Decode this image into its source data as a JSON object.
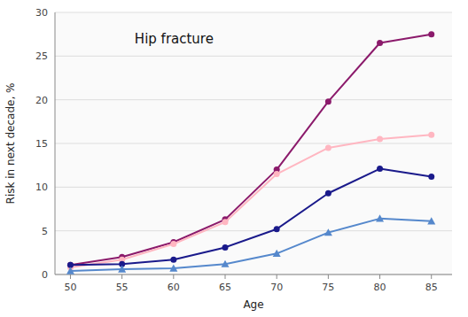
{
  "chart_data": {
    "type": "line",
    "title": "Hip fracture",
    "x_label": "Age",
    "y_label": "Risk in next decade, %",
    "x": [
      50,
      55,
      60,
      65,
      70,
      75,
      80,
      85
    ],
    "series": [
      {
        "color": "#8B1A6B",
        "marker": "circle",
        "values": [
          1.1,
          2.0,
          3.7,
          6.3,
          12.0,
          19.8,
          26.5,
          27.5
        ]
      },
      {
        "color": "#FFB6C1",
        "marker": "circle",
        "values": [
          0.8,
          1.7,
          3.5,
          6.0,
          11.5,
          14.5,
          15.5,
          16.0
        ]
      },
      {
        "color": "#1A1A8B",
        "marker": "circle",
        "values": [
          1.1,
          1.2,
          1.7,
          3.1,
          5.2,
          9.3,
          12.1,
          11.2
        ]
      },
      {
        "color": "#5588CC",
        "marker": "triangle",
        "values": [
          0.4,
          0.6,
          0.7,
          1.2,
          2.4,
          4.8,
          6.4,
          6.1
        ]
      }
    ],
    "xlim": [
      48.5,
      87
    ],
    "xticks": [
      50,
      55,
      60,
      65,
      70,
      75,
      80,
      85
    ],
    "ylim": [
      0,
      30
    ],
    "yticks": [
      0,
      5,
      10,
      15,
      20,
      25,
      30
    ],
    "grid": true
  }
}
